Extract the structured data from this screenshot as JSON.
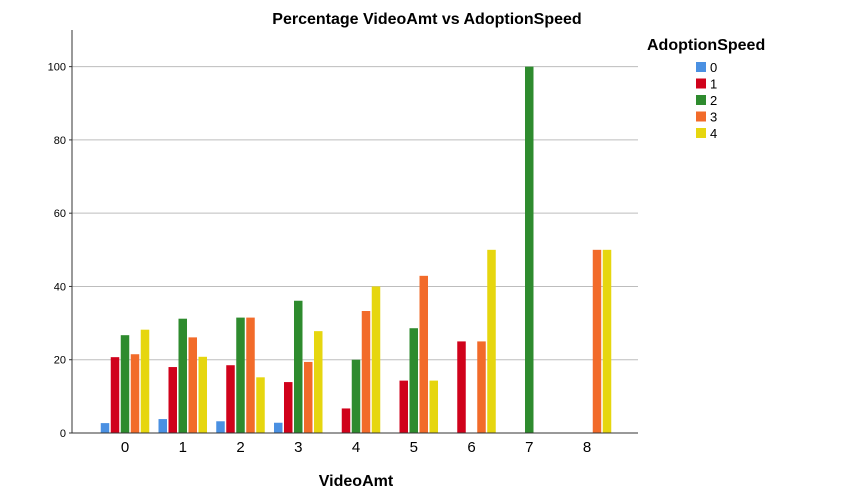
{
  "chart_data": {
    "type": "bar",
    "title": "Percentage VideoAmt vs AdoptionSpeed",
    "xlabel": "VideoAmt",
    "ylabel": "",
    "categories": [
      "0",
      "1",
      "2",
      "3",
      "4",
      "5",
      "6",
      "7",
      "8"
    ],
    "ylim": [
      0,
      110
    ],
    "yticks": [
      0,
      20,
      40,
      60,
      80,
      100
    ],
    "grid": true,
    "legend_title": "AdoptionSpeed",
    "legend_position": "top-right",
    "series": [
      {
        "name": "0",
        "color": "#4a90e2",
        "values": [
          2.7,
          3.8,
          3.2,
          2.8,
          0,
          0,
          0,
          0,
          0
        ]
      },
      {
        "name": "1",
        "color": "#d0021b",
        "values": [
          20.7,
          18.0,
          18.5,
          13.9,
          6.7,
          14.3,
          25.0,
          0,
          0
        ]
      },
      {
        "name": "2",
        "color": "#2e8b2e",
        "values": [
          26.7,
          31.2,
          31.5,
          36.1,
          20.0,
          28.6,
          0,
          100.0,
          0
        ]
      },
      {
        "name": "3",
        "color": "#f26b2a",
        "values": [
          21.5,
          26.1,
          31.5,
          19.4,
          33.3,
          42.9,
          25.0,
          0,
          50.0
        ]
      },
      {
        "name": "4",
        "color": "#e6d60f",
        "values": [
          28.2,
          20.8,
          15.2,
          27.8,
          40.0,
          14.3,
          50.0,
          0,
          50.0
        ]
      }
    ]
  }
}
